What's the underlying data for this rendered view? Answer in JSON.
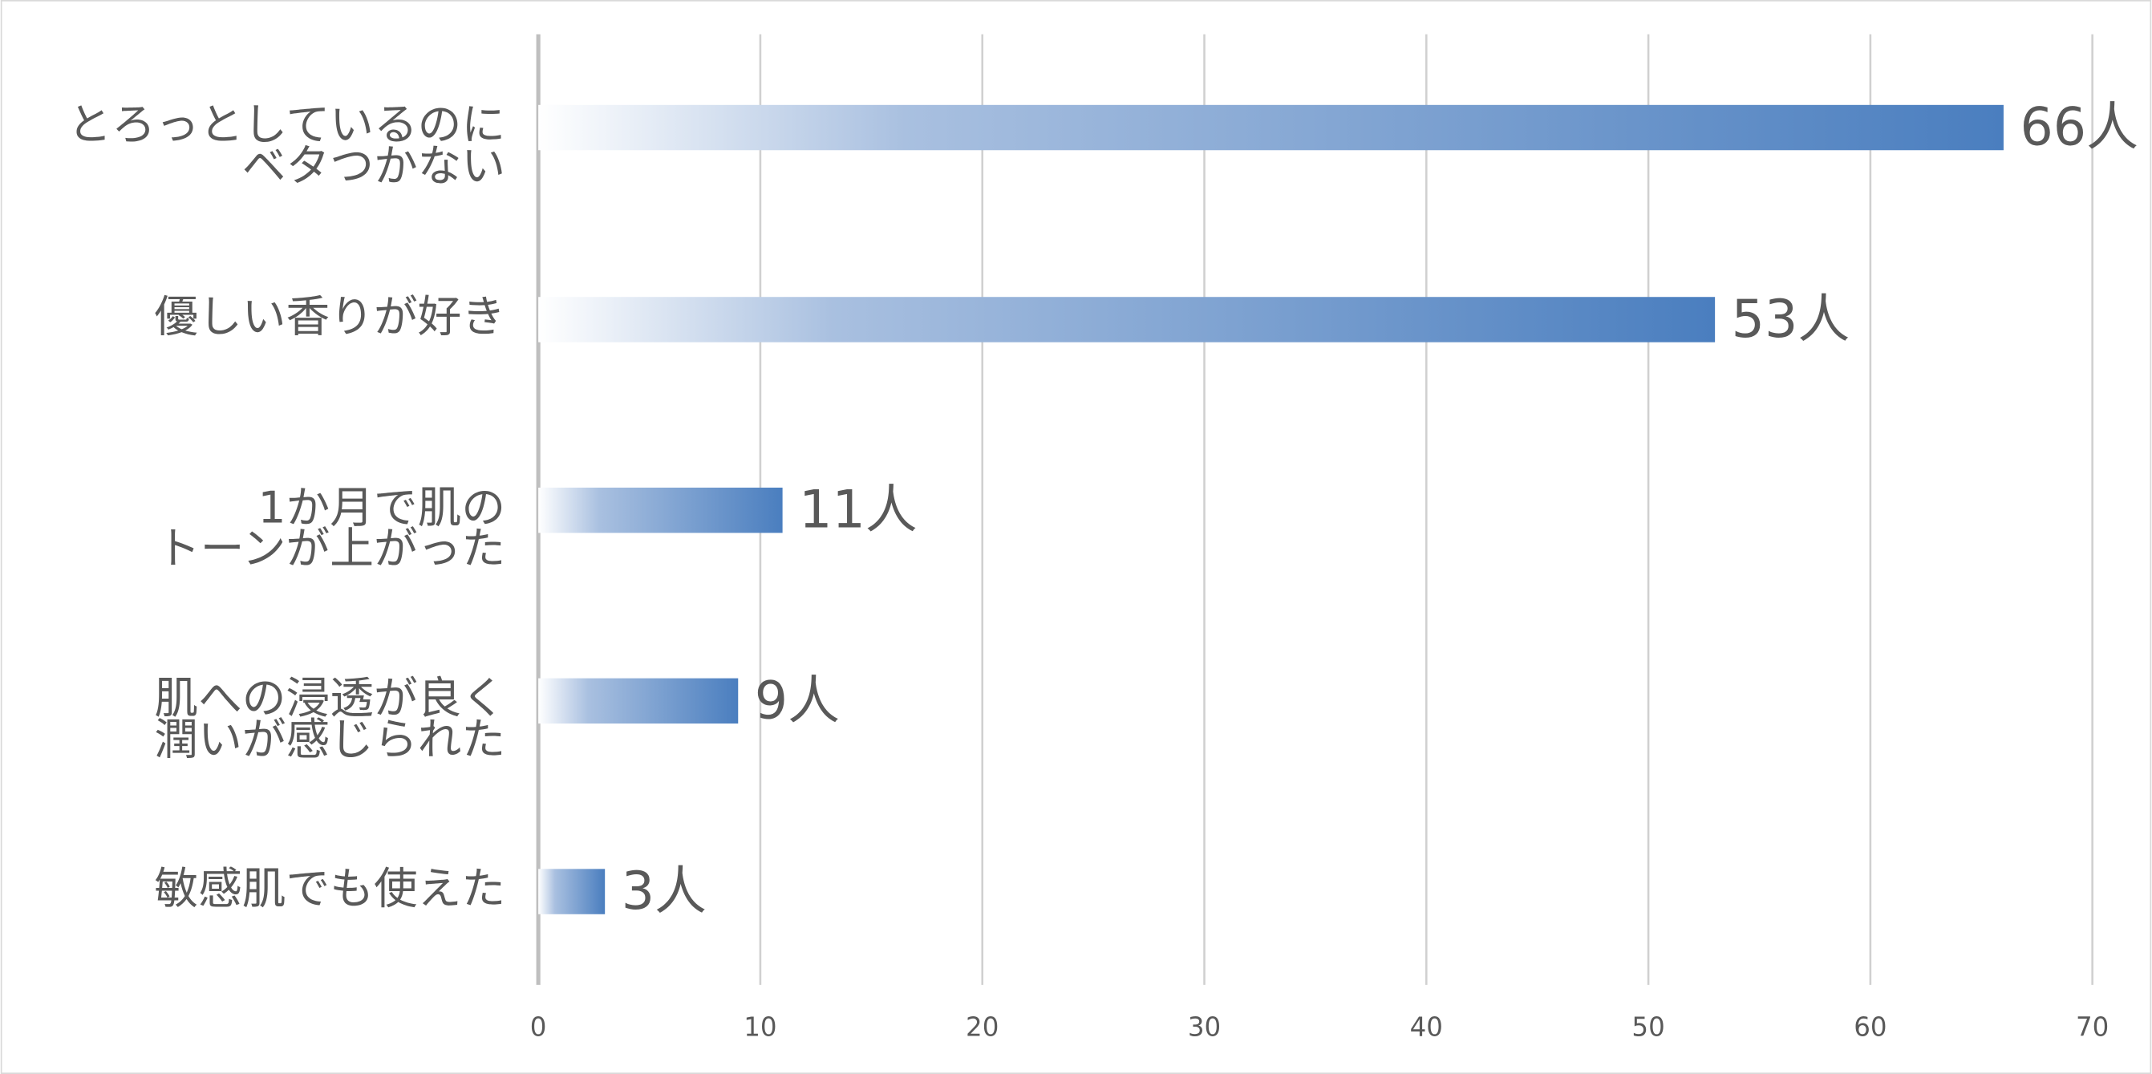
{
  "chart_data": {
    "type": "bar",
    "orientation": "horizontal",
    "categories": [
      [
        "とろっとしているのに",
        "ベタつかない"
      ],
      [
        "優しい香りが好き"
      ],
      [
        "1か月で肌の",
        "トーンが上がった"
      ],
      [
        "肌への浸透が良く",
        "潤いが感じられた"
      ],
      [
        "敏感肌でも使えた"
      ]
    ],
    "values": [
      66,
      53,
      11,
      9,
      3
    ],
    "value_labels": [
      "66人",
      "53人",
      "11人",
      "9人",
      "3人"
    ],
    "color": "#4a7ebf",
    "xlim": [
      0,
      70
    ],
    "xticks": [
      0,
      10,
      20,
      30,
      40,
      50,
      60,
      70
    ],
    "grid": true
  }
}
